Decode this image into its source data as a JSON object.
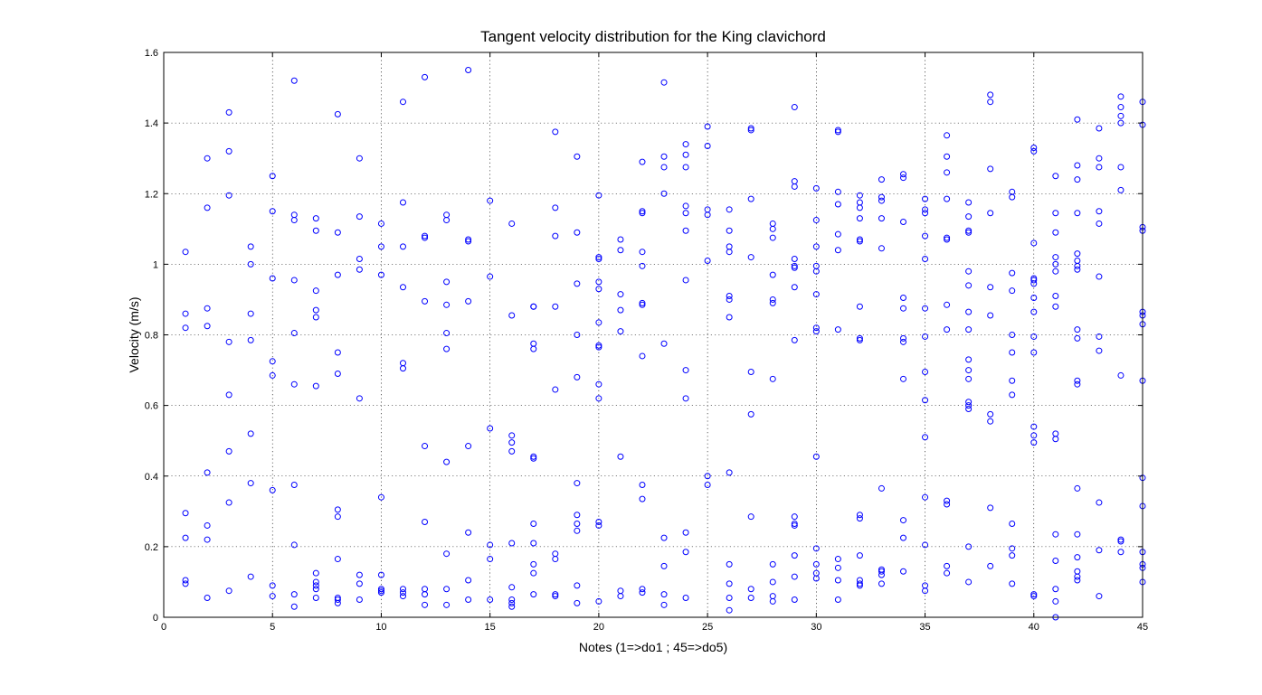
{
  "chart_data": {
    "type": "scatter",
    "title": "Tangent velocity distribution for the King clavichord",
    "xlabel": "Notes (1=>do1 ; 45=>do5)",
    "ylabel": "Velocity (m/s)",
    "xlim": [
      0,
      45
    ],
    "ylim": [
      0,
      1.6
    ],
    "xticks": [
      0,
      5,
      10,
      15,
      20,
      25,
      30,
      35,
      40,
      45
    ],
    "yticks": [
      0,
      0.2,
      0.4,
      0.6,
      0.8,
      1,
      1.2,
      1.4,
      1.6
    ],
    "grid": true,
    "marker": "circle-open",
    "marker_color": "#0000ff",
    "series": [
      {
        "points": [
          {
            "note": 1,
            "v": [
              1.035,
              0.86,
              0.82,
              0.295,
              0.225,
              0.105,
              0.095
            ]
          },
          {
            "note": 2,
            "v": [
              1.3,
              1.16,
              0.875,
              0.825,
              0.41,
              0.26,
              0.22,
              0.055
            ]
          },
          {
            "note": 3,
            "v": [
              1.43,
              1.32,
              1.195,
              0.78,
              0.63,
              0.47,
              0.325,
              0.075
            ]
          },
          {
            "note": 4,
            "v": [
              1.05,
              1.0,
              0.86,
              0.785,
              0.52,
              0.38,
              0.115
            ]
          },
          {
            "note": 5,
            "v": [
              1.25,
              1.15,
              0.96,
              0.725,
              0.685,
              0.36,
              0.09,
              0.06
            ]
          },
          {
            "note": 6,
            "v": [
              1.52,
              1.14,
              1.125,
              0.955,
              0.805,
              0.66,
              0.375,
              0.205,
              0.065,
              0.03
            ]
          },
          {
            "note": 7,
            "v": [
              1.13,
              1.095,
              0.925,
              0.87,
              0.85,
              0.655,
              0.125,
              0.1,
              0.09,
              0.08,
              0.055
            ]
          },
          {
            "note": 8,
            "v": [
              1.425,
              1.09,
              0.97,
              0.75,
              0.69,
              0.305,
              0.285,
              0.165,
              0.055,
              0.05,
              0.04
            ]
          },
          {
            "note": 9,
            "v": [
              1.3,
              1.135,
              1.015,
              0.985,
              0.62,
              0.12,
              0.095,
              0.05
            ]
          },
          {
            "note": 10,
            "v": [
              1.115,
              1.05,
              0.97,
              0.34,
              0.12,
              0.08,
              0.075,
              0.07
            ]
          },
          {
            "note": 11,
            "v": [
              1.46,
              1.175,
              1.05,
              0.935,
              0.72,
              0.705,
              0.08,
              0.07,
              0.06
            ]
          },
          {
            "note": 12,
            "v": [
              1.53,
              1.08,
              1.075,
              0.895,
              0.485,
              0.27,
              0.08,
              0.065,
              0.035
            ]
          },
          {
            "note": 13,
            "v": [
              1.14,
              1.125,
              0.95,
              0.885,
              0.805,
              0.76,
              0.44,
              0.18,
              0.08,
              0.035
            ]
          },
          {
            "note": 14,
            "v": [
              1.55,
              1.07,
              1.065,
              0.895,
              0.485,
              0.24,
              0.105,
              0.05
            ]
          },
          {
            "note": 15,
            "v": [
              1.18,
              0.965,
              0.535,
              0.205,
              0.165,
              0.05
            ]
          },
          {
            "note": 16,
            "v": [
              1.115,
              0.855,
              0.515,
              0.495,
              0.47,
              0.21,
              0.085,
              0.05,
              0.04,
              0.03
            ]
          },
          {
            "note": 17,
            "v": [
              0.88,
              0.88,
              0.775,
              0.76,
              0.455,
              0.45,
              0.265,
              0.21,
              0.15,
              0.125,
              0.065
            ]
          },
          {
            "note": 18,
            "v": [
              1.375,
              1.16,
              1.08,
              0.88,
              0.645,
              0.18,
              0.165,
              0.065,
              0.06
            ]
          },
          {
            "note": 19,
            "v": [
              1.305,
              1.09,
              0.945,
              0.8,
              0.68,
              0.38,
              0.29,
              0.265,
              0.245,
              0.09,
              0.04
            ]
          },
          {
            "note": 20,
            "v": [
              1.195,
              1.02,
              1.015,
              0.95,
              0.93,
              0.835,
              0.77,
              0.765,
              0.66,
              0.62,
              0.27,
              0.26,
              0.045
            ]
          },
          {
            "note": 21,
            "v": [
              1.07,
              1.04,
              0.915,
              0.87,
              0.81,
              0.455,
              0.075,
              0.06
            ]
          },
          {
            "note": 22,
            "v": [
              1.29,
              1.15,
              1.145,
              1.035,
              0.995,
              0.89,
              0.885,
              0.74,
              0.375,
              0.335,
              0.08,
              0.07
            ]
          },
          {
            "note": 23,
            "v": [
              1.515,
              1.305,
              1.275,
              1.2,
              0.775,
              0.225,
              0.145,
              0.065,
              0.035
            ]
          },
          {
            "note": 24,
            "v": [
              1.34,
              1.31,
              1.275,
              1.165,
              1.145,
              1.095,
              0.955,
              0.7,
              0.62,
              0.24,
              0.185,
              0.055
            ]
          },
          {
            "note": 25,
            "v": [
              1.39,
              1.335,
              1.155,
              1.14,
              1.01,
              0.4,
              0.375
            ]
          },
          {
            "note": 26,
            "v": [
              1.155,
              1.095,
              1.05,
              1.035,
              0.91,
              0.9,
              0.85,
              0.41,
              0.15,
              0.095,
              0.055,
              0.02
            ]
          },
          {
            "note": 27,
            "v": [
              1.385,
              1.38,
              1.185,
              1.02,
              0.695,
              0.575,
              0.285,
              0.08,
              0.055
            ]
          },
          {
            "note": 28,
            "v": [
              1.115,
              1.1,
              1.075,
              0.97,
              0.9,
              0.89,
              0.675,
              0.15,
              0.1,
              0.06,
              0.045
            ]
          },
          {
            "note": 29,
            "v": [
              1.445,
              1.235,
              1.22,
              1.015,
              0.995,
              0.99,
              0.935,
              0.785,
              0.285,
              0.265,
              0.26,
              0.175,
              0.115,
              0.05
            ]
          },
          {
            "note": 30,
            "v": [
              1.215,
              1.125,
              1.05,
              0.995,
              0.98,
              0.915,
              0.82,
              0.81,
              0.455,
              0.195,
              0.15,
              0.125,
              0.11
            ]
          },
          {
            "note": 31,
            "v": [
              1.38,
              1.375,
              1.205,
              1.17,
              1.085,
              1.04,
              0.815,
              0.165,
              0.14,
              0.105,
              0.05
            ]
          },
          {
            "note": 32,
            "v": [
              1.195,
              1.175,
              1.16,
              1.13,
              1.07,
              1.065,
              0.88,
              0.79,
              0.785,
              0.29,
              0.28,
              0.175,
              0.105,
              0.095,
              0.09
            ]
          },
          {
            "note": 33,
            "v": [
              1.24,
              1.19,
              1.18,
              1.13,
              1.045,
              0.365,
              0.135,
              0.13,
              0.12,
              0.095
            ]
          },
          {
            "note": 34,
            "v": [
              1.255,
              1.245,
              1.12,
              0.905,
              0.875,
              0.79,
              0.78,
              0.675,
              0.275,
              0.225,
              0.13
            ]
          },
          {
            "note": 35,
            "v": [
              1.185,
              1.155,
              1.145,
              1.08,
              1.015,
              0.875,
              0.795,
              0.695,
              0.615,
              0.51,
              0.34,
              0.205,
              0.09,
              0.075
            ]
          },
          {
            "note": 36,
            "v": [
              1.365,
              1.305,
              1.26,
              1.185,
              1.075,
              1.07,
              0.885,
              0.815,
              0.33,
              0.32,
              0.145,
              0.125
            ]
          },
          {
            "note": 37,
            "v": [
              1.175,
              1.135,
              1.095,
              1.09,
              0.98,
              0.94,
              0.865,
              0.815,
              0.73,
              0.7,
              0.675,
              0.61,
              0.6,
              0.59,
              0.2,
              0.1
            ]
          },
          {
            "note": 38,
            "v": [
              1.48,
              1.46,
              1.27,
              1.145,
              0.935,
              0.855,
              0.575,
              0.555,
              0.31,
              0.145
            ]
          },
          {
            "note": 39,
            "v": [
              1.205,
              1.19,
              0.975,
              0.925,
              0.8,
              0.75,
              0.67,
              0.63,
              0.265,
              0.195,
              0.175,
              0.095
            ]
          },
          {
            "note": 40,
            "v": [
              1.33,
              1.32,
              1.06,
              0.96,
              0.955,
              0.945,
              0.905,
              0.865,
              0.795,
              0.75,
              0.54,
              0.515,
              0.495,
              0.065,
              0.06
            ]
          },
          {
            "note": 41,
            "v": [
              1.25,
              1.145,
              1.09,
              1.02,
              1.0,
              0.98,
              0.91,
              0.88,
              0.52,
              0.505,
              0.235,
              0.16,
              0.08,
              0.045,
              0.0
            ]
          },
          {
            "note": 42,
            "v": [
              1.41,
              1.28,
              1.24,
              1.145,
              1.03,
              1.01,
              0.995,
              0.985,
              0.815,
              0.79,
              0.67,
              0.66,
              0.365,
              0.235,
              0.17,
              0.13,
              0.115,
              0.105
            ]
          },
          {
            "note": 43,
            "v": [
              1.385,
              1.3,
              1.275,
              1.15,
              1.115,
              0.965,
              0.795,
              0.755,
              0.325,
              0.19,
              0.06
            ]
          },
          {
            "note": 44,
            "v": [
              1.475,
              1.445,
              1.42,
              1.4,
              1.275,
              1.21,
              0.685,
              0.22,
              0.215,
              0.185
            ]
          },
          {
            "note": 45,
            "v": [
              1.46,
              1.395,
              1.105,
              1.095,
              0.865,
              0.855,
              0.83,
              0.67,
              0.395,
              0.315,
              0.185,
              0.15,
              0.14,
              0.1
            ]
          }
        ]
      }
    ]
  }
}
